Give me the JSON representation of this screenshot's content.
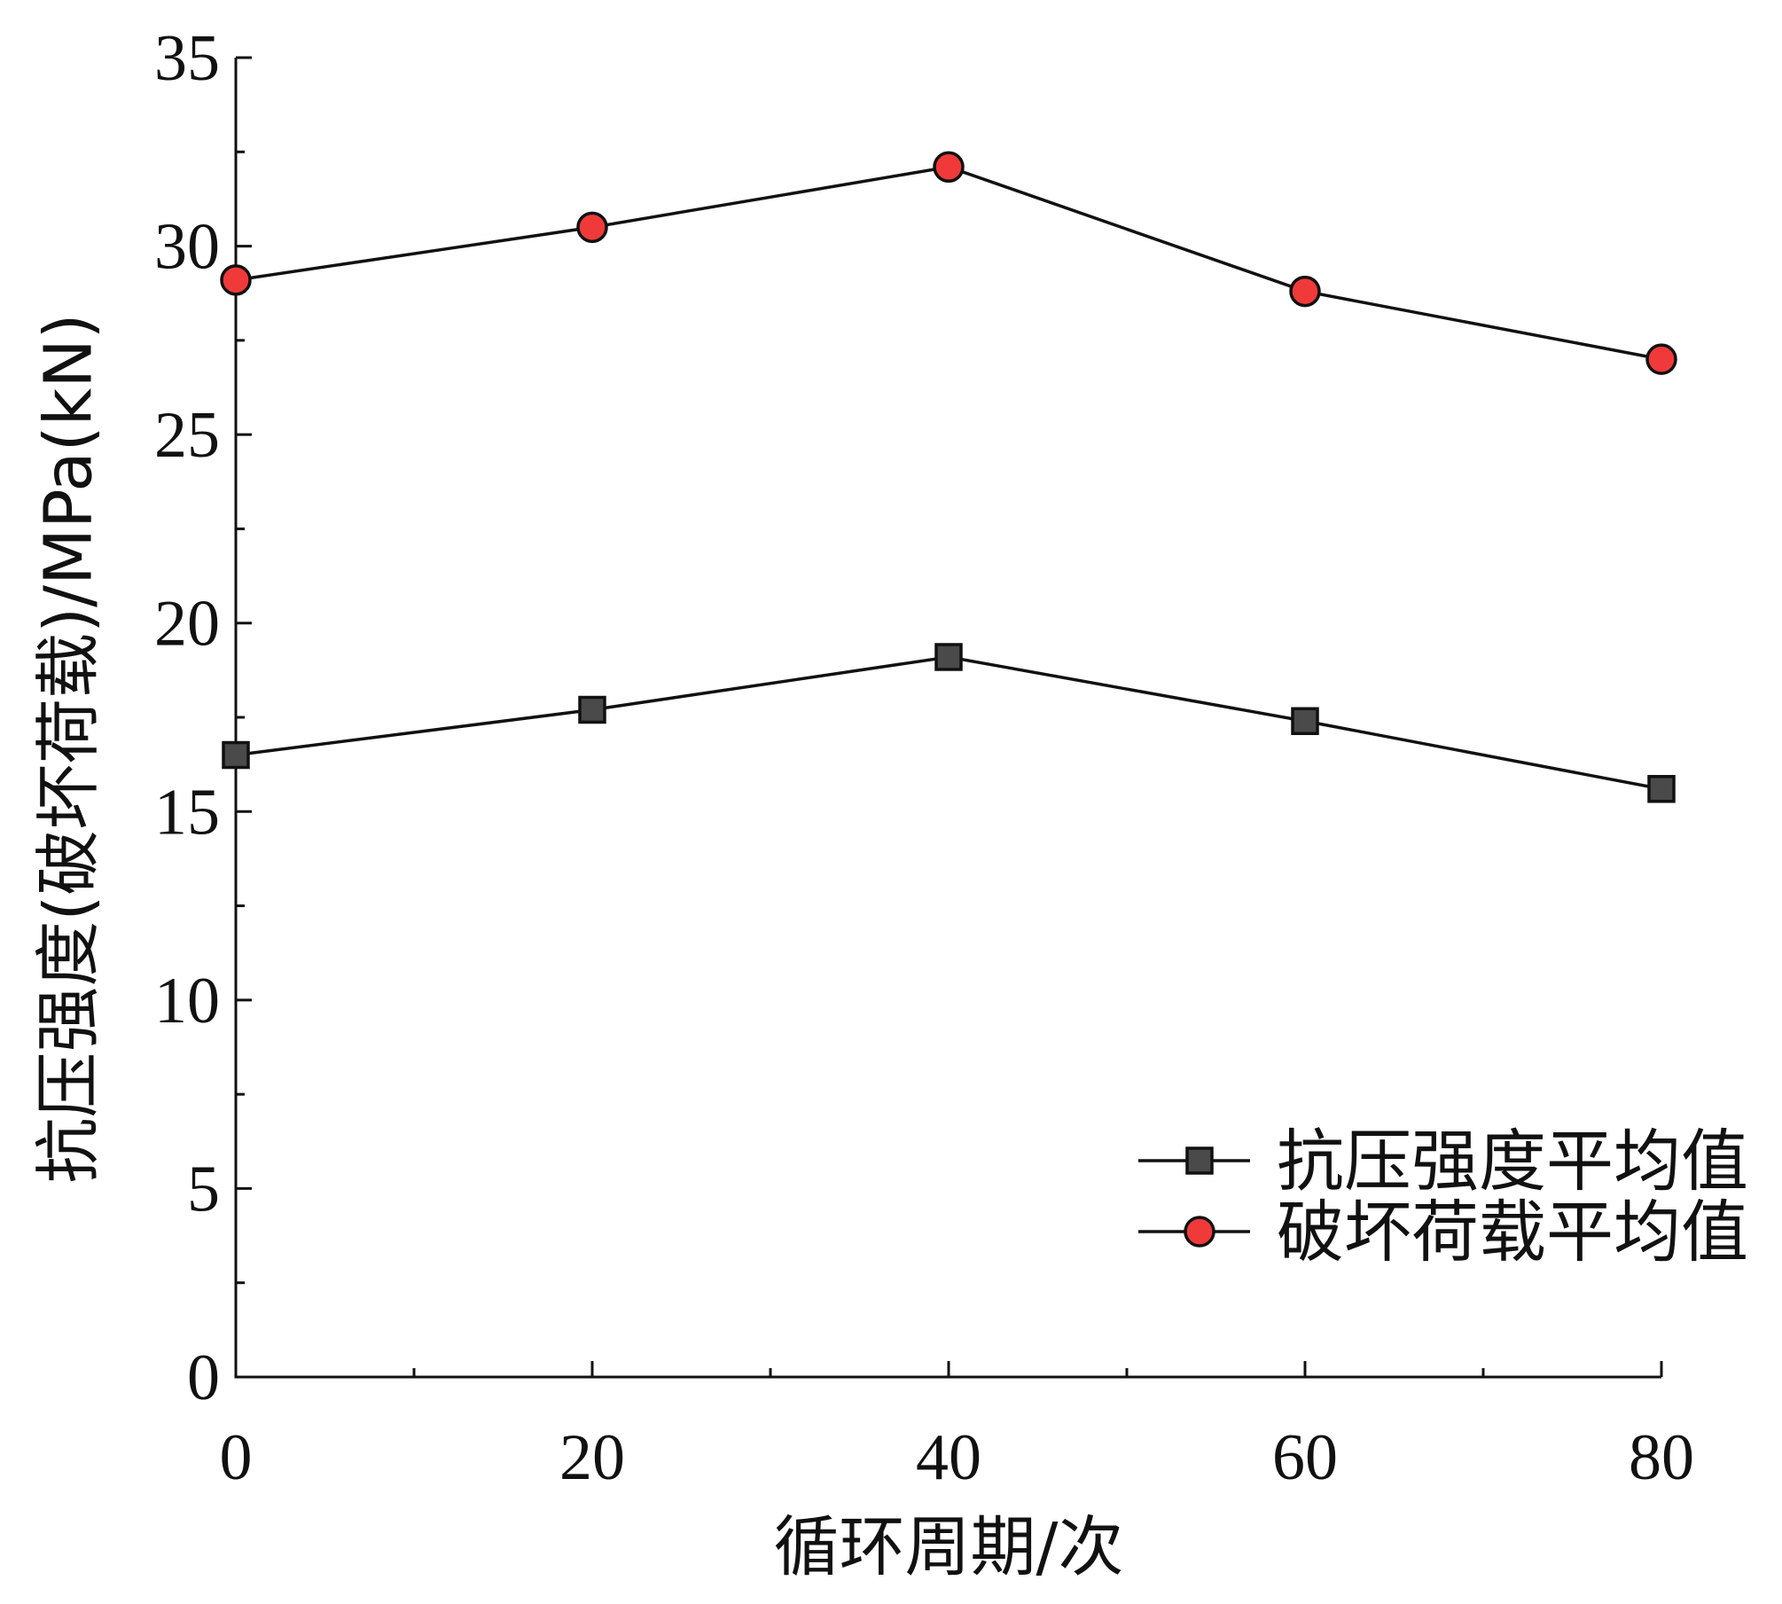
{
  "chart_data": {
    "type": "line",
    "title": "",
    "xlabel": "循环周期/次",
    "ylabel": "抗压强度(破坏荷载)/MPa(kN)",
    "x": [
      0,
      20,
      40,
      60,
      80
    ],
    "xlim": [
      0,
      80
    ],
    "ylim": [
      0,
      35
    ],
    "xticks": [
      0,
      20,
      40,
      60,
      80
    ],
    "x_minor_ticks": [
      10,
      30,
      50,
      70
    ],
    "yticks": [
      0,
      5,
      10,
      15,
      20,
      25,
      30,
      35
    ],
    "y_minor_ticks": [
      2.5,
      7.5,
      12.5,
      17.5,
      22.5,
      27.5,
      32.5
    ],
    "grid": false,
    "legend_position": "bottom-right",
    "series": [
      {
        "name": "抗压强度平均值",
        "marker": "square",
        "color": "#4a4a4a",
        "values": [
          16.5,
          17.7,
          19.1,
          17.4,
          15.6
        ]
      },
      {
        "name": "破坏荷载平均值",
        "marker": "circle",
        "color": "#f03a3a",
        "values": [
          29.1,
          30.5,
          32.1,
          28.8,
          27.0
        ]
      }
    ]
  }
}
